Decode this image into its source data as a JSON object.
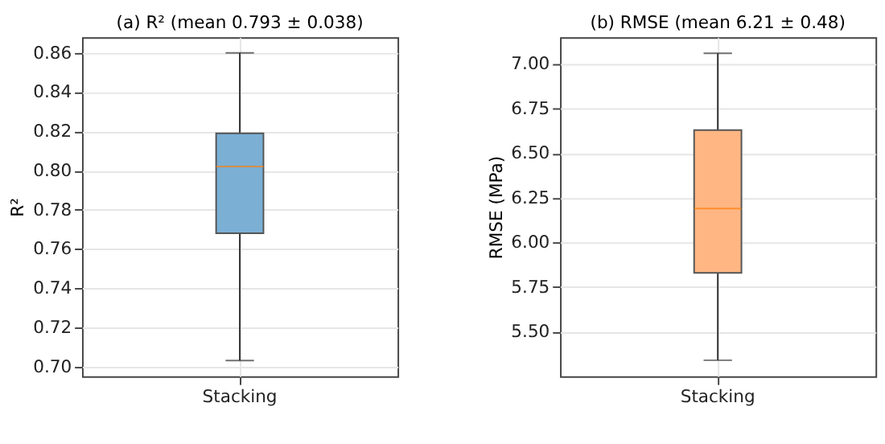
{
  "chart_data": [
    {
      "type": "box",
      "title": "(a) R²  (mean 0.793 ± 0.038)",
      "ylabel": "R²",
      "categories": [
        "Stacking"
      ],
      "color": "#7bafd4",
      "boxes": [
        {
          "low": 0.703,
          "q1": 0.768,
          "median": 0.802,
          "q3": 0.819,
          "high": 0.86
        }
      ],
      "ylim": [
        0.695,
        0.868
      ],
      "yticks": [
        {
          "value": 0.7,
          "label": "0.70"
        },
        0.72,
        0.74,
        0.76,
        0.78,
        {
          "value": 0.8,
          "label": "0.80"
        },
        0.82,
        0.84,
        0.86
      ],
      "grid": true
    },
    {
      "type": "box",
      "title": "(b) RMSE  (mean 6.21 ± 0.48)",
      "ylabel": "RMSE (MPa)",
      "categories": [
        "Stacking"
      ],
      "color": "#ffb683",
      "boxes": [
        {
          "low": 5.34,
          "q1": 5.83,
          "median": 6.19,
          "q3": 6.63,
          "high": 7.06
        }
      ],
      "ylim": [
        5.25,
        7.15
      ],
      "yticks": [
        {
          "value": 5.5,
          "label": "5.50"
        },
        {
          "value": 5.75,
          "label": "5.75"
        },
        {
          "value": 6.0,
          "label": "6.00"
        },
        {
          "value": 6.25,
          "label": "6.25"
        },
        {
          "value": 6.5,
          "label": "6.50"
        },
        {
          "value": 6.75,
          "label": "6.75"
        },
        {
          "value": 7.0,
          "label": "7.00"
        }
      ],
      "grid": true
    }
  ]
}
